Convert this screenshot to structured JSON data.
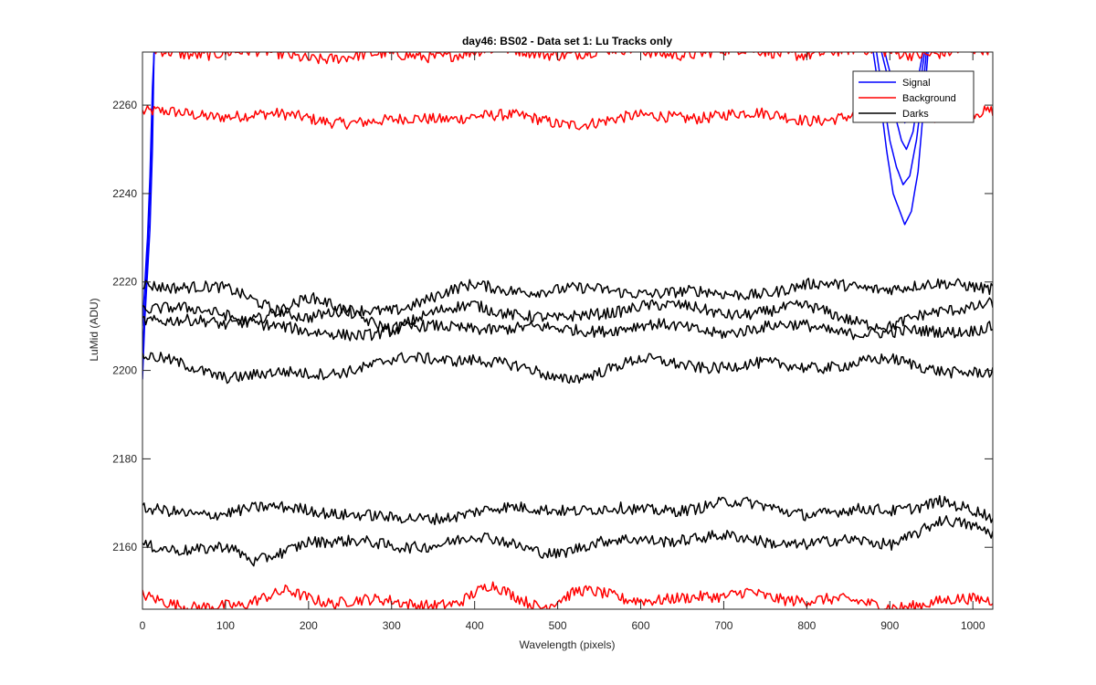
{
  "chart_data": {
    "type": "line",
    "title": "day46: BS02 - Data set 1: Lu Tracks only",
    "xlabel": "Wavelength (pixels)",
    "ylabel": "LuMid (ADU)",
    "xlim": [
      0,
      1024
    ],
    "ylim": [
      2146,
      2272
    ],
    "xticks": [
      0,
      100,
      200,
      300,
      400,
      500,
      600,
      700,
      800,
      900,
      1000
    ],
    "yticks": [
      2160,
      2180,
      2200,
      2220,
      2240,
      2260
    ],
    "grid": false,
    "legend_position": "top-right",
    "legend": [
      {
        "label": "Signal",
        "color": "#0000ff"
      },
      {
        "label": "Background",
        "color": "#ff0000"
      },
      {
        "label": "Darks",
        "color": "#000000"
      }
    ],
    "series": [
      {
        "group": "Signal",
        "color": "#0000ff",
        "points": [
          [
            0,
            2198
          ],
          [
            3,
            2212
          ],
          [
            6,
            2222
          ],
          [
            9,
            2232
          ],
          [
            12,
            2250
          ],
          [
            14,
            2272
          ]
        ]
      },
      {
        "group": "Signal",
        "color": "#0000ff",
        "points": [
          [
            0,
            2204
          ],
          [
            3,
            2214
          ],
          [
            6,
            2226
          ],
          [
            9,
            2240
          ],
          [
            12,
            2260
          ],
          [
            14,
            2272
          ]
        ]
      },
      {
        "group": "Signal",
        "color": "#0000ff",
        "points": [
          [
            0,
            2210
          ],
          [
            3,
            2220
          ],
          [
            6,
            2230
          ],
          [
            9,
            2244
          ],
          [
            12,
            2264
          ],
          [
            14,
            2272
          ]
        ]
      },
      {
        "group": "Signal",
        "color": "#0000ff",
        "points": [
          [
            880,
            2272
          ],
          [
            888,
            2262
          ],
          [
            896,
            2250
          ],
          [
            904,
            2240
          ],
          [
            912,
            2236
          ],
          [
            918,
            2233
          ],
          [
            926,
            2236
          ],
          [
            934,
            2245
          ],
          [
            940,
            2258
          ],
          [
            946,
            2272
          ]
        ]
      },
      {
        "group": "Signal",
        "color": "#0000ff",
        "points": [
          [
            884,
            2272
          ],
          [
            892,
            2262
          ],
          [
            900,
            2252
          ],
          [
            908,
            2246
          ],
          [
            916,
            2242
          ],
          [
            924,
            2244
          ],
          [
            932,
            2252
          ],
          [
            940,
            2264
          ],
          [
            944,
            2272
          ]
        ]
      },
      {
        "group": "Signal",
        "color": "#0000ff",
        "points": [
          [
            890,
            2272
          ],
          [
            898,
            2266
          ],
          [
            906,
            2258
          ],
          [
            914,
            2252
          ],
          [
            920,
            2250
          ],
          [
            928,
            2254
          ],
          [
            936,
            2264
          ],
          [
            942,
            2272
          ]
        ]
      },
      {
        "group": "Signal",
        "color": "#0000ff",
        "points": [
          [
            894,
            2272
          ],
          [
            902,
            2266
          ],
          [
            910,
            2260
          ],
          [
            918,
            2256
          ],
          [
            926,
            2258
          ],
          [
            934,
            2266
          ],
          [
            940,
            2272
          ]
        ]
      },
      {
        "group": "Background",
        "color": "#ff0000",
        "points": [
          [
            0,
            2258
          ],
          [
            100,
            2258
          ],
          [
            200,
            2257
          ],
          [
            300,
            2256
          ],
          [
            400,
            2258
          ],
          [
            500,
            2256
          ],
          [
            600,
            2257
          ],
          [
            700,
            2258
          ],
          [
            800,
            2257
          ],
          [
            900,
            2258
          ],
          [
            1024,
            2258
          ]
        ]
      },
      {
        "group": "Background",
        "color": "#ff0000",
        "points": [
          [
            0,
            2272
          ],
          [
            100,
            2272
          ],
          [
            200,
            2271
          ],
          [
            300,
            2271
          ],
          [
            400,
            2272
          ],
          [
            500,
            2272
          ],
          [
            600,
            2272
          ],
          [
            700,
            2272
          ],
          [
            800,
            2272
          ],
          [
            900,
            2272
          ],
          [
            1024,
            2272
          ]
        ]
      },
      {
        "group": "Background",
        "color": "#ff0000",
        "points": [
          [
            0,
            2149
          ],
          [
            60,
            2147
          ],
          [
            120,
            2146
          ],
          [
            175,
            2151
          ],
          [
            230,
            2147
          ],
          [
            300,
            2148
          ],
          [
            380,
            2147
          ],
          [
            420,
            2151
          ],
          [
            480,
            2147
          ],
          [
            525,
            2150
          ],
          [
            580,
            2148
          ],
          [
            640,
            2149
          ],
          [
            700,
            2148
          ],
          [
            730,
            2150
          ],
          [
            800,
            2148
          ],
          [
            900,
            2147
          ],
          [
            1024,
            2148
          ]
        ]
      },
      {
        "group": "Darks",
        "color": "#000000",
        "points": [
          [
            0,
            2220
          ],
          [
            100,
            2218
          ],
          [
            200,
            2212
          ],
          [
            300,
            2214
          ],
          [
            400,
            2219
          ],
          [
            500,
            2218
          ],
          [
            600,
            2218
          ],
          [
            700,
            2217
          ],
          [
            800,
            2219
          ],
          [
            900,
            2219
          ],
          [
            1024,
            2219
          ]
        ]
      },
      {
        "group": "Darks",
        "color": "#000000",
        "points": [
          [
            0,
            2212
          ],
          [
            100,
            2210
          ],
          [
            200,
            2216
          ],
          [
            300,
            2210
          ],
          [
            400,
            2215
          ],
          [
            500,
            2211
          ],
          [
            600,
            2215
          ],
          [
            700,
            2213
          ],
          [
            800,
            2214
          ],
          [
            900,
            2210
          ],
          [
            1024,
            2216
          ]
        ]
      },
      {
        "group": "Darks",
        "color": "#000000",
        "points": [
          [
            0,
            2214
          ],
          [
            100,
            2213
          ],
          [
            200,
            2208
          ],
          [
            300,
            2209
          ],
          [
            400,
            2210
          ],
          [
            500,
            2209
          ],
          [
            600,
            2210
          ],
          [
            700,
            2209
          ],
          [
            800,
            2210
          ],
          [
            900,
            2208
          ],
          [
            1024,
            2210
          ]
        ]
      },
      {
        "group": "Darks",
        "color": "#000000",
        "points": [
          [
            0,
            2203
          ],
          [
            100,
            2199
          ],
          [
            200,
            2199
          ],
          [
            300,
            2202
          ],
          [
            400,
            2203
          ],
          [
            500,
            2198
          ],
          [
            600,
            2202
          ],
          [
            700,
            2201
          ],
          [
            800,
            2201
          ],
          [
            900,
            2202
          ],
          [
            1024,
            2199
          ]
        ]
      },
      {
        "group": "Darks",
        "color": "#000000",
        "points": [
          [
            0,
            2168
          ],
          [
            100,
            2168
          ],
          [
            200,
            2169
          ],
          [
            300,
            2166
          ],
          [
            400,
            2168
          ],
          [
            500,
            2169
          ],
          [
            600,
            2168
          ],
          [
            700,
            2170
          ],
          [
            800,
            2168
          ],
          [
            900,
            2168
          ],
          [
            960,
            2171
          ],
          [
            1024,
            2166
          ]
        ]
      },
      {
        "group": "Darks",
        "color": "#000000",
        "points": [
          [
            0,
            2160
          ],
          [
            100,
            2160
          ],
          [
            135,
            2156
          ],
          [
            200,
            2162
          ],
          [
            300,
            2160
          ],
          [
            400,
            2162
          ],
          [
            500,
            2159
          ],
          [
            600,
            2162
          ],
          [
            700,
            2162
          ],
          [
            800,
            2161
          ],
          [
            900,
            2161
          ],
          [
            960,
            2166
          ],
          [
            1024,
            2163
          ]
        ]
      }
    ]
  }
}
